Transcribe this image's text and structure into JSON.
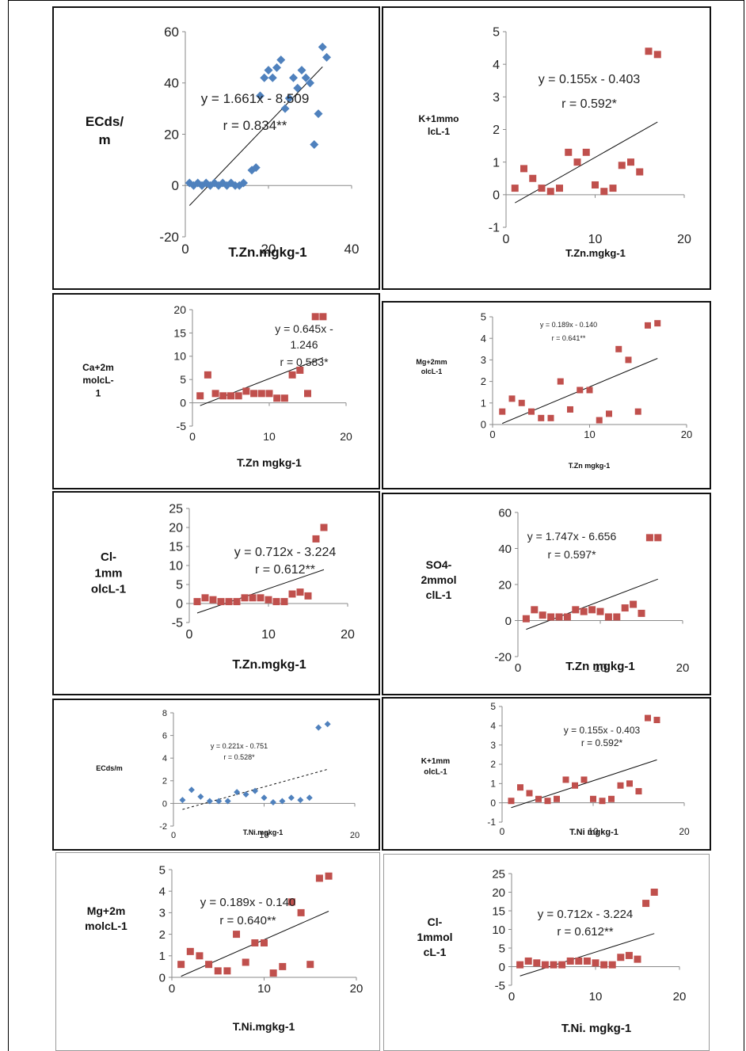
{
  "chart_data": [
    {
      "type": "scatter",
      "ylabel": "ECds/ m",
      "xlabel": "T.Zn.mgkg-1",
      "xlim": [
        0,
        40
      ],
      "ylim": [
        -20,
        60
      ],
      "xticks": [
        0,
        20,
        40
      ],
      "yticks": [
        -20,
        0,
        20,
        40,
        60
      ],
      "marker": "diamond",
      "color": "#4f81bd",
      "equation": "y = 1.661x - 8.509",
      "r_label": "r = 0.834**",
      "trend": [
        [
          1,
          -7.8
        ],
        [
          33,
          46.3
        ]
      ],
      "x": [
        1,
        2,
        3,
        4,
        5,
        6,
        7,
        8,
        9,
        10,
        11,
        12,
        13,
        14,
        16,
        17,
        18,
        19,
        20,
        21,
        22,
        23,
        24,
        25,
        26,
        27,
        28,
        29,
        30,
        31,
        32,
        33,
        34
      ],
      "y": [
        1,
        0,
        1,
        0,
        1,
        0,
        1,
        0,
        1,
        0,
        1,
        0,
        0,
        1,
        6,
        7,
        35,
        42,
        45,
        42,
        46,
        49,
        30,
        34,
        42,
        38,
        45,
        42,
        40,
        16,
        28,
        54,
        50
      ]
    },
    {
      "type": "scatter",
      "ylabel": "K+1mmo lcL-1",
      "xlabel": "T.Zn.mgkg-1",
      "xlim": [
        0,
        20
      ],
      "ylim": [
        -1,
        5
      ],
      "xticks": [
        0,
        10,
        20
      ],
      "yticks": [
        -1,
        0,
        1,
        2,
        3,
        4,
        5
      ],
      "marker": "square",
      "color": "#c0504d",
      "equation": "y = 0.155x - 0.403",
      "r_label": "r = 0.592*",
      "trend": [
        [
          1,
          -0.25
        ],
        [
          17,
          2.23
        ]
      ],
      "x": [
        1,
        2,
        3,
        4,
        5,
        6,
        7,
        8,
        9,
        10,
        11,
        12,
        13,
        14,
        15,
        16,
        17
      ],
      "y": [
        0.2,
        0.8,
        0.5,
        0.2,
        0.1,
        0.2,
        1.3,
        1.0,
        1.3,
        0.3,
        0.1,
        0.2,
        0.9,
        1.0,
        0.7,
        4.4,
        4.3
      ]
    },
    {
      "type": "scatter",
      "ylabel": "Ca+2m molcL- 1",
      "xlabel": "T.Zn mgkg-1",
      "xlim": [
        0,
        20
      ],
      "ylim": [
        -5,
        20
      ],
      "xticks": [
        0,
        10,
        20
      ],
      "yticks": [
        -5,
        0,
        5,
        10,
        15,
        20
      ],
      "marker": "square",
      "color": "#c0504d",
      "equation_lines": [
        "y = 0.645x -",
        "1.246"
      ],
      "r_label": "r = 0.583*",
      "trend": [
        [
          1,
          -0.6
        ],
        [
          17,
          9.7
        ]
      ],
      "x": [
        1,
        2,
        3,
        4,
        5,
        6,
        7,
        8,
        9,
        10,
        11,
        12,
        13,
        14,
        15,
        16,
        17
      ],
      "y": [
        1.5,
        6.0,
        2.0,
        1.5,
        1.5,
        1.5,
        2.5,
        2.0,
        2.0,
        2.0,
        1.0,
        1.0,
        6.0,
        7.0,
        2.0,
        18.5,
        18.5
      ]
    },
    {
      "type": "scatter",
      "ylabel": "Mg+2mm olcL-1",
      "xlabel": "T.Zn mgkg-1",
      "xlim": [
        0,
        20
      ],
      "ylim": [
        0,
        5
      ],
      "xticks": [
        0,
        10,
        20
      ],
      "yticks": [
        0,
        1,
        2,
        3,
        4,
        5
      ],
      "marker": "square",
      "color": "#c0504d",
      "equation": "y = 0.189x - 0.140",
      "r_label": "r = 0.641**",
      "trend": [
        [
          1,
          0.05
        ],
        [
          17,
          3.07
        ]
      ],
      "x": [
        1,
        2,
        3,
        4,
        5,
        6,
        7,
        8,
        9,
        10,
        11,
        12,
        13,
        14,
        15,
        16,
        17
      ],
      "y": [
        0.6,
        1.2,
        1.0,
        0.6,
        0.3,
        0.3,
        2.0,
        0.7,
        1.6,
        1.6,
        0.2,
        0.5,
        3.5,
        3.0,
        0.6,
        4.6,
        4.7
      ]
    },
    {
      "type": "scatter",
      "ylabel": "Cl- 1mm olcL-1",
      "xlabel": "T.Zn.mgkg-1",
      "xlim": [
        0,
        20
      ],
      "ylim": [
        -5,
        25
      ],
      "xticks": [
        0,
        10,
        20
      ],
      "yticks": [
        -5,
        0,
        5,
        10,
        15,
        20,
        25
      ],
      "marker": "square",
      "color": "#c0504d",
      "equation": "y = 0.712x - 3.224",
      "r_label": "r = 0.612**",
      "trend": [
        [
          1,
          -2.5
        ],
        [
          17,
          8.9
        ]
      ],
      "x": [
        1,
        2,
        3,
        4,
        5,
        6,
        7,
        8,
        9,
        10,
        11,
        12,
        13,
        14,
        15,
        16,
        17
      ],
      "y": [
        0.5,
        1.5,
        1.0,
        0.5,
        0.5,
        0.5,
        1.5,
        1.5,
        1.5,
        1.0,
        0.5,
        0.5,
        2.5,
        3.0,
        2.0,
        17.0,
        20.0
      ]
    },
    {
      "type": "scatter",
      "ylabel": "SO4- 2mmol clL-1",
      "xlabel": "T.Zn mgkg-1",
      "xlim": [
        0,
        20
      ],
      "ylim": [
        -20,
        60
      ],
      "xticks": [
        0,
        10,
        20
      ],
      "yticks": [
        -20,
        0,
        20,
        40,
        60
      ],
      "marker": "square",
      "color": "#c0504d",
      "equation": "y = 1.747x - 6.656",
      "r_label": "r = 0.597*",
      "trend": [
        [
          1,
          -4.9
        ],
        [
          17,
          23.0
        ]
      ],
      "x": [
        1,
        2,
        3,
        4,
        5,
        6,
        7,
        8,
        9,
        10,
        11,
        12,
        13,
        14,
        15,
        16,
        17
      ],
      "y": [
        1,
        6,
        3,
        2,
        2,
        2,
        6,
        5,
        6,
        5,
        2,
        2,
        7,
        9,
        4,
        46,
        46
      ]
    },
    {
      "type": "scatter",
      "ylabel": "ECds/m",
      "xlabel": "T.Ni.mgkg-1",
      "xlim": [
        0,
        20
      ],
      "ylim": [
        -2,
        8
      ],
      "xticks": [
        0,
        10,
        20
      ],
      "yticks": [
        -2,
        0,
        2,
        4,
        6,
        8
      ],
      "marker": "diamond",
      "color": "#4f81bd",
      "trend_style": "dashed",
      "equation": "y = 0.221x - 0.751",
      "r_label": "r = 0.528*",
      "trend": [
        [
          1,
          -0.53
        ],
        [
          17,
          3.01
        ]
      ],
      "x": [
        1,
        2,
        3,
        4,
        5,
        6,
        7,
        8,
        9,
        10,
        11,
        12,
        13,
        14,
        15,
        16,
        17
      ],
      "y": [
        0.3,
        1.2,
        0.6,
        0.2,
        0.2,
        0.2,
        1.0,
        0.8,
        1.1,
        0.5,
        0.1,
        0.2,
        0.5,
        0.3,
        0.5,
        6.7,
        7.0
      ]
    },
    {
      "type": "scatter",
      "ylabel": "K+1mm olcL-1",
      "xlabel": "T.Ni mgkg-1",
      "xlim": [
        0,
        20
      ],
      "ylim": [
        -1,
        5
      ],
      "xticks": [
        0,
        10,
        20
      ],
      "yticks": [
        -1,
        0,
        1,
        2,
        3,
        4,
        5
      ],
      "marker": "square",
      "color": "#c0504d",
      "equation": "y = 0.155x - 0.403",
      "r_label": "r = 0.592*",
      "trend": [
        [
          1,
          -0.25
        ],
        [
          17,
          2.23
        ]
      ],
      "x": [
        1,
        2,
        3,
        4,
        5,
        6,
        7,
        8,
        9,
        10,
        11,
        12,
        13,
        14,
        15,
        16,
        17
      ],
      "y": [
        0.1,
        0.8,
        0.5,
        0.2,
        0.1,
        0.2,
        1.2,
        0.9,
        1.2,
        0.2,
        0.1,
        0.2,
        0.9,
        1.0,
        0.6,
        4.4,
        4.3
      ]
    },
    {
      "type": "scatter",
      "ylabel": "Mg+2m molcL-1",
      "xlabel": "T.Ni.mgkg-1",
      "xlim": [
        0,
        20
      ],
      "ylim": [
        0,
        5
      ],
      "xticks": [
        0,
        10,
        20
      ],
      "yticks": [
        0,
        1,
        2,
        3,
        4,
        5
      ],
      "marker": "square",
      "color": "#c0504d",
      "equation": "y = 0.189x - 0.140",
      "r_label": "r = 0.640**",
      "trend": [
        [
          1,
          0.05
        ],
        [
          17,
          3.07
        ]
      ],
      "x": [
        1,
        2,
        3,
        4,
        5,
        6,
        7,
        8,
        9,
        10,
        11,
        12,
        13,
        14,
        15,
        16,
        17
      ],
      "y": [
        0.6,
        1.2,
        1.0,
        0.6,
        0.3,
        0.3,
        2.0,
        0.7,
        1.6,
        1.6,
        0.2,
        0.5,
        3.5,
        3.0,
        0.6,
        4.6,
        4.7
      ]
    },
    {
      "type": "scatter",
      "ylabel": "Cl- 1mmol cL-1",
      "xlabel": "T.Ni. mgkg-1",
      "xlim": [
        0,
        20
      ],
      "ylim": [
        -5,
        25
      ],
      "xticks": [
        0,
        10,
        20
      ],
      "yticks": [
        -5,
        0,
        5,
        10,
        15,
        20,
        25
      ],
      "marker": "square",
      "color": "#c0504d",
      "equation": "y = 0.712x - 3.224",
      "r_label": "r = 0.612**",
      "trend": [
        [
          1,
          -2.5
        ],
        [
          17,
          8.9
        ]
      ],
      "x": [
        1,
        2,
        3,
        4,
        5,
        6,
        7,
        8,
        9,
        10,
        11,
        12,
        13,
        14,
        15,
        16,
        17
      ],
      "y": [
        0.5,
        1.5,
        1.0,
        0.5,
        0.5,
        0.5,
        1.5,
        1.5,
        1.5,
        1.0,
        0.5,
        0.5,
        2.5,
        3.0,
        2.0,
        17.0,
        20.0
      ]
    }
  ]
}
